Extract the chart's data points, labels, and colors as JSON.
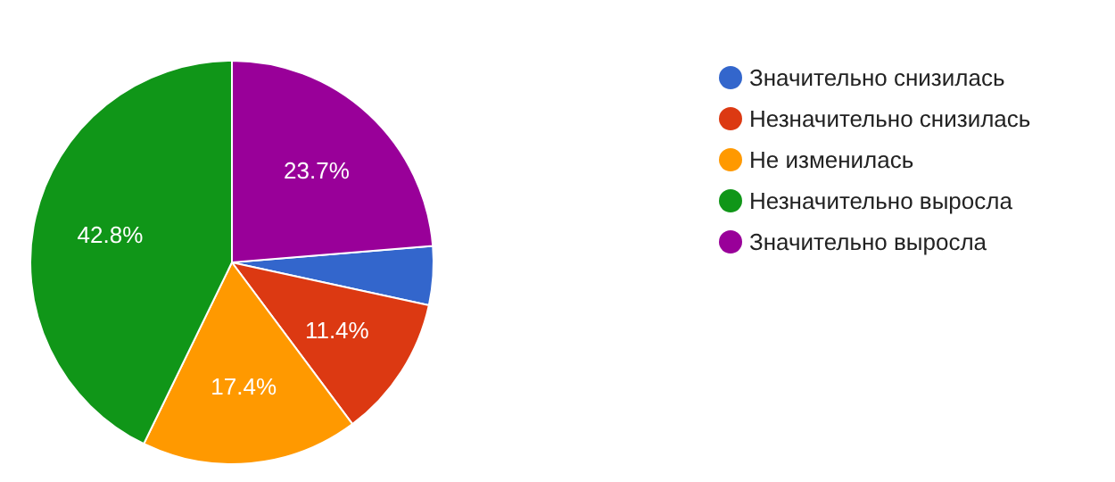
{
  "chart_data": {
    "type": "pie",
    "categories": [
      "Значительно снизилась",
      "Незначительно снизилась",
      "Не изменилась",
      "Незначительно выросла",
      "Значительно выросла"
    ],
    "values": [
      4.7,
      11.4,
      17.4,
      42.8,
      23.7
    ],
    "colors": [
      "#3366cc",
      "#dc3912",
      "#ff9900",
      "#109618",
      "#990099"
    ],
    "value_labels": [
      null,
      "11.4%",
      "17.4%",
      "42.8%",
      "23.7%"
    ],
    "legend": "right"
  }
}
